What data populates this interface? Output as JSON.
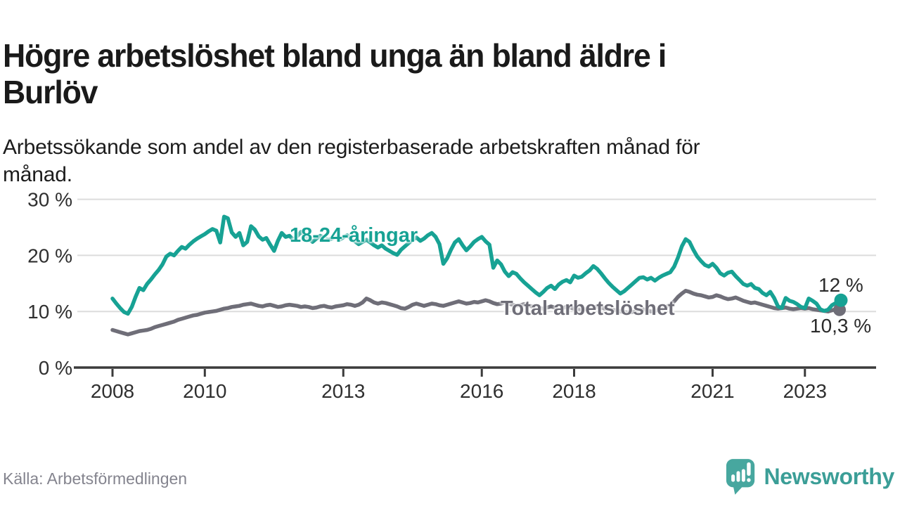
{
  "header": {
    "title": "Högre arbetslöshet bland unga än bland äldre i Burlöv",
    "subtitle": "Arbetssökande som andel av den registerbaserade arbetskraften månad för månad."
  },
  "footer": {
    "source": "Källa: Arbetsförmedlingen",
    "brand": "Newsworthy",
    "brand_icon": "speech-bubble-bar-chart-icon"
  },
  "colors": {
    "young_line": "#17a294",
    "total_line": "#6f6e78",
    "axis": "#3b3b3b",
    "grid": "#dcdcdc",
    "tick_text": "#2f2f2f",
    "brand": "#3b9e97",
    "logo_bubble": "#47a79f"
  },
  "chart_data": {
    "type": "line",
    "frequency": "monthly",
    "x_start": "2008-01",
    "x_end": "2023-10",
    "ylim": [
      0,
      32
    ],
    "grid": "horizontal",
    "legend_position": "inline-labels",
    "y_ticks": [
      {
        "value": 30,
        "label": "30 %"
      },
      {
        "value": 20,
        "label": "20 %"
      },
      {
        "value": 10,
        "label": "10 %"
      },
      {
        "value": 0,
        "label": "0 %"
      }
    ],
    "x_ticks": [
      {
        "year": 2008,
        "label": "2008"
      },
      {
        "year": 2010,
        "label": "2010"
      },
      {
        "year": 2013,
        "label": "2013"
      },
      {
        "year": 2016,
        "label": "2016"
      },
      {
        "year": 2018,
        "label": "2018"
      },
      {
        "year": 2021,
        "label": "2021"
      },
      {
        "year": 2023,
        "label": "2023"
      }
    ],
    "series": [
      {
        "name": "18-24-åringar",
        "color": "#17a294",
        "end_value": 12.0,
        "end_label": "12 %",
        "values": [
          12.3,
          11.4,
          10.6,
          9.9,
          9.6,
          10.8,
          12.6,
          14.2,
          13.8,
          14.9,
          15.7,
          16.6,
          17.4,
          18.4,
          19.8,
          20.3,
          20.0,
          20.8,
          21.5,
          21.2,
          21.9,
          22.5,
          23.0,
          23.4,
          23.8,
          24.3,
          24.7,
          24.4,
          22.3,
          26.9,
          26.6,
          24.1,
          23.3,
          24.0,
          21.8,
          22.4,
          25.2,
          24.6,
          23.4,
          22.8,
          23.1,
          21.9,
          20.8,
          22.6,
          24.0,
          23.3,
          23.5,
          22.8,
          23.4,
          24.2,
          23.6,
          23.0,
          22.4,
          23.0,
          23.5,
          23.2,
          22.7,
          23.0,
          23.3,
          22.8,
          23.2,
          23.6,
          23.0,
          22.5,
          22.0,
          22.4,
          22.8,
          22.3,
          21.8,
          21.4,
          21.8,
          21.2,
          20.8,
          20.4,
          20.1,
          21.0,
          21.6,
          22.2,
          22.8,
          23.2,
          22.6,
          23.0,
          23.6,
          24.0,
          23.3,
          22.0,
          18.5,
          19.5,
          21.0,
          22.3,
          22.9,
          21.8,
          20.9,
          21.6,
          22.4,
          22.9,
          23.3,
          22.5,
          21.9,
          17.8,
          19.1,
          18.4,
          17.1,
          16.3,
          17.0,
          16.7,
          15.9,
          15.2,
          14.6,
          14.0,
          13.4,
          12.9,
          13.5,
          14.2,
          14.6,
          14.0,
          14.8,
          15.3,
          15.6,
          15.2,
          16.4,
          16.0,
          16.2,
          16.8,
          17.3,
          18.1,
          17.6,
          16.8,
          15.9,
          15.1,
          14.4,
          13.8,
          13.2,
          13.6,
          14.2,
          14.8,
          15.4,
          16.0,
          16.1,
          15.7,
          16.0,
          15.5,
          16.0,
          16.4,
          16.7,
          17.0,
          18.0,
          19.6,
          21.6,
          22.9,
          22.4,
          21.0,
          19.8,
          19.0,
          18.3,
          18.0,
          18.5,
          17.8,
          16.8,
          16.4,
          16.9,
          17.1,
          16.3,
          15.6,
          14.9,
          14.6,
          14.9,
          14.2,
          14.0,
          13.3,
          12.9,
          13.5,
          12.4,
          10.9,
          10.6,
          12.4,
          11.9,
          11.7,
          11.3,
          10.8,
          10.6,
          12.3,
          11.9,
          11.4,
          10.4,
          10.1,
          10.3,
          11.1,
          11.5,
          12.0
        ]
      },
      {
        "name": "Total arbetslöshet",
        "color": "#6f6e78",
        "end_value": 10.3,
        "end_label": "10,3 %",
        "values": [
          6.7,
          6.5,
          6.3,
          6.1,
          5.9,
          6.1,
          6.3,
          6.5,
          6.6,
          6.7,
          6.9,
          7.2,
          7.4,
          7.6,
          7.8,
          8.0,
          8.2,
          8.5,
          8.7,
          8.9,
          9.1,
          9.3,
          9.4,
          9.6,
          9.8,
          9.9,
          10.0,
          10.1,
          10.3,
          10.5,
          10.6,
          10.8,
          10.9,
          11.0,
          11.2,
          11.3,
          11.4,
          11.2,
          11.0,
          10.9,
          11.1,
          11.2,
          11.0,
          10.8,
          10.9,
          11.1,
          11.2,
          11.1,
          11.0,
          10.8,
          10.9,
          10.8,
          10.6,
          10.7,
          10.9,
          11.0,
          10.8,
          10.7,
          10.9,
          11.0,
          11.1,
          11.3,
          11.2,
          11.0,
          11.2,
          11.6,
          12.3,
          12.0,
          11.6,
          11.4,
          11.6,
          11.5,
          11.3,
          11.1,
          10.9,
          10.6,
          10.5,
          10.8,
          11.2,
          11.4,
          11.2,
          11.0,
          11.2,
          11.4,
          11.3,
          11.1,
          11.0,
          11.2,
          11.4,
          11.6,
          11.8,
          11.6,
          11.4,
          11.5,
          11.7,
          11.6,
          11.8,
          12.0,
          11.8,
          11.5,
          11.3,
          11.4,
          11.6,
          11.4,
          11.2,
          11.0,
          11.1,
          11.3,
          11.1,
          10.9,
          10.8,
          10.6,
          10.5,
          10.7,
          10.9,
          10.7,
          10.5,
          10.6,
          10.8,
          10.7,
          10.5,
          10.4,
          10.3,
          10.4,
          10.5,
          10.7,
          10.9,
          10.7,
          10.5,
          10.4,
          10.3,
          10.2,
          10.0,
          9.9,
          9.8,
          9.9,
          10.0,
          10.2,
          10.4,
          10.2,
          10.0,
          10.1,
          10.3,
          10.5,
          10.8,
          11.2,
          11.8,
          12.6,
          13.2,
          13.7,
          13.5,
          13.2,
          13.0,
          12.9,
          12.7,
          12.5,
          12.6,
          12.9,
          12.7,
          12.4,
          12.2,
          12.3,
          12.5,
          12.2,
          11.9,
          11.7,
          11.5,
          11.6,
          11.4,
          11.2,
          11.0,
          10.8,
          10.6,
          10.5,
          10.6,
          10.7,
          10.5,
          10.4,
          10.5,
          10.6,
          10.5,
          10.6,
          10.4,
          10.3,
          10.2,
          10.1,
          10.0,
          10.2,
          10.4,
          10.3
        ]
      }
    ]
  }
}
